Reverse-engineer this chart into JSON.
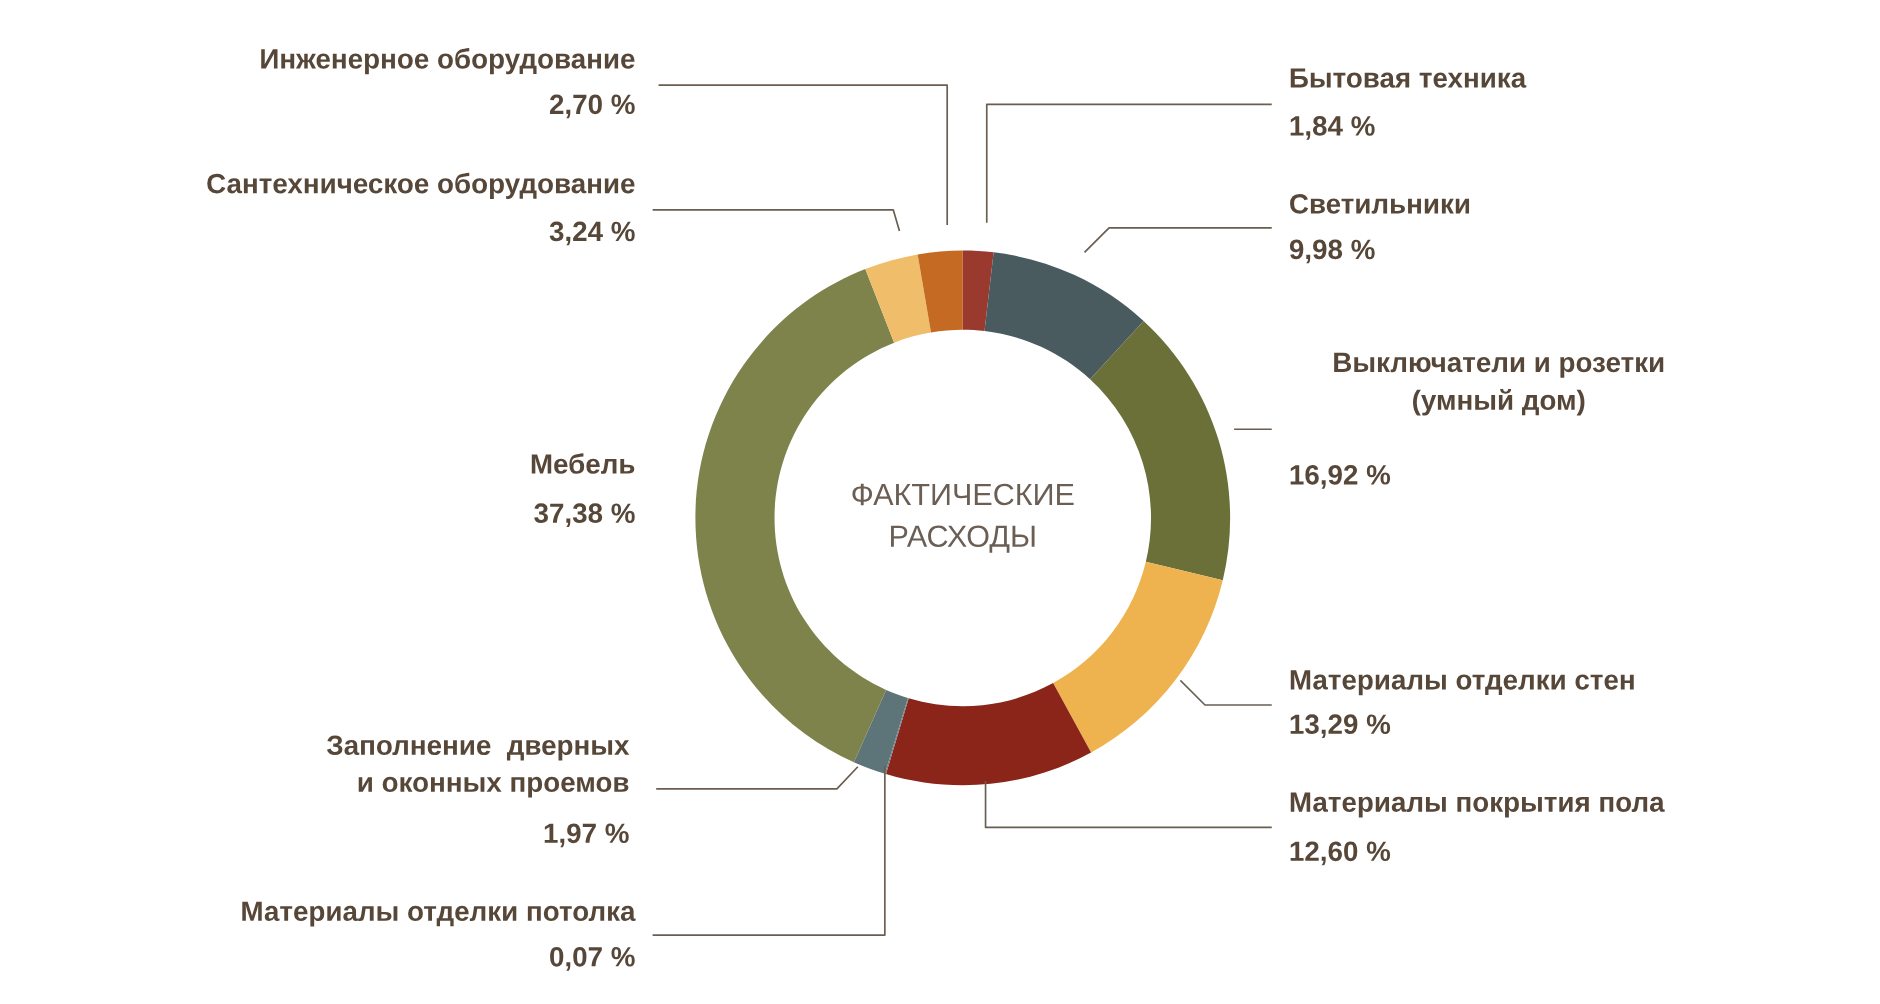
{
  "chart_data": {
    "type": "donut",
    "title": "ФАКТИЧЕСКИЕ РАСХОДЫ",
    "categories": [
      "Бытовая техника",
      "Светильники",
      "Выключатели и розетки\n(умный дом)",
      "Материалы отделки стен",
      "Материалы покрытия пола",
      "Материалы отделки потолка",
      "Заполнение  дверных\nи оконных проемов",
      "Мебель",
      "Сантехническое оборудование",
      "Инженерное оборудование"
    ],
    "values": [
      1.84,
      9.98,
      16.92,
      13.29,
      12.6,
      0.07,
      1.97,
      37.38,
      3.24,
      2.7
    ],
    "value_labels": [
      "1,84 %",
      "9,98 %",
      "16,92 %",
      "13,29 %",
      "12,60 %",
      "0,07 %",
      "1,97 %",
      "37,38 %",
      "3,24 %",
      "2,70 %"
    ],
    "colors": [
      "#9a3a2e",
      "#4a5b60",
      "#6b7039",
      "#eeb24f",
      "#8b2419",
      "#6e7f84",
      "#5d7479",
      "#7e834c",
      "#f0bd6a",
      "#c56a22"
    ]
  }
}
